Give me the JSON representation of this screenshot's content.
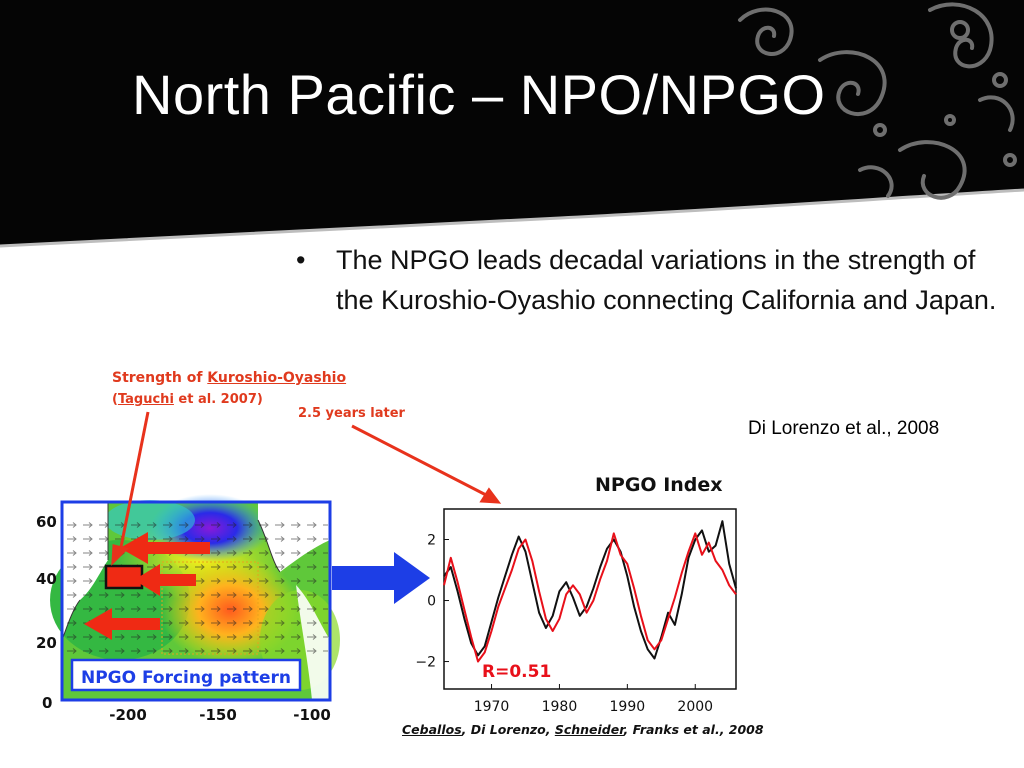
{
  "slide": {
    "title": "North Pacific – NPO/NPGO",
    "bullet": "The NPGO leads decadal variations in the strength of the Kuroshio-Oyashio connecting California and Japan.",
    "citation": "Di Lorenzo et al., 2008"
  },
  "figure": {
    "strength_label_prefix": "Strength of ",
    "strength_label_name": "Kuroshio-Oyashio",
    "taguchi_open": "(",
    "taguchi_name": "Taguchi",
    "taguchi_rest": " et al. 2007)",
    "lag_label": "2.5 years later",
    "forcing_label": "NPGO Forcing pattern",
    "credit_parts": [
      "Ceballos",
      ", Di Lorenzo, ",
      "Schneider",
      ", Franks et al., 2008"
    ],
    "map_y_ticks": [
      "60",
      "40",
      "20",
      "0"
    ],
    "map_x_ticks": [
      "-200",
      "-150",
      "-100"
    ],
    "colors": {
      "accent_red": "#e8321c",
      "arrow_blue": "#1d3ee6",
      "chart_red": "#e8101a",
      "chart_black": "#111111"
    }
  },
  "chart_data": {
    "type": "line",
    "title": "NPGO Index",
    "annotation": "R=0.51",
    "xlim": [
      1963,
      2006
    ],
    "ylim": [
      -2.9,
      3.0
    ],
    "x_ticks": [
      1970,
      1980,
      1990,
      2000
    ],
    "y_ticks": [
      -2,
      0,
      2
    ],
    "x_tick_labels": [
      "1970",
      "1980",
      "1990",
      "2000"
    ],
    "y_tick_labels": [
      "−2",
      "0",
      "2"
    ],
    "grid": false,
    "legend": "none",
    "series": [
      {
        "color": "#111111",
        "x": [
          1963.0,
          1964.0,
          1965.0,
          1966.0,
          1967.0,
          1968.0,
          1969.0,
          1970.0,
          1971.0,
          1972.0,
          1973.0,
          1974.0,
          1975.0,
          1976.0,
          1977.0,
          1978.0,
          1979.0,
          1980.0,
          1981.0,
          1982.0,
          1983.0,
          1984.0,
          1985.0,
          1986.0,
          1987.0,
          1988.0,
          1989.0,
          1990.0,
          1991.0,
          1992.0,
          1993.0,
          1994.0,
          1995.0,
          1996.0,
          1997.0,
          1998.0,
          1999.0,
          2000.0,
          2001.0,
          2002.0,
          2003.0,
          2004.0,
          2005.0,
          2006.0
        ],
        "y": [
          0.8,
          1.1,
          0.3,
          -0.6,
          -1.4,
          -1.8,
          -1.5,
          -0.7,
          0.1,
          0.8,
          1.5,
          2.1,
          1.6,
          0.6,
          -0.4,
          -0.9,
          -0.5,
          0.3,
          0.6,
          0.1,
          -0.5,
          -0.2,
          0.4,
          1.1,
          1.7,
          2.0,
          1.6,
          0.8,
          -0.2,
          -1.0,
          -1.6,
          -1.9,
          -1.2,
          -0.4,
          -0.8,
          0.2,
          1.4,
          2.0,
          2.3,
          1.6,
          1.8,
          2.6,
          1.2,
          0.4
        ]
      },
      {
        "color": "#e8101a",
        "x": [
          1963.0,
          1964.0,
          1965.0,
          1966.0,
          1967.0,
          1968.0,
          1969.0,
          1970.0,
          1971.0,
          1972.0,
          1973.0,
          1974.0,
          1975.0,
          1976.0,
          1977.0,
          1978.0,
          1979.0,
          1980.0,
          1981.0,
          1982.0,
          1983.0,
          1984.0,
          1985.0,
          1986.0,
          1987.0,
          1988.0,
          1989.0,
          1990.0,
          1991.0,
          1992.0,
          1993.0,
          1994.0,
          1995.0,
          1996.0,
          1997.0,
          1998.0,
          1999.0,
          2000.0,
          2001.0,
          2002.0,
          2003.0,
          2004.0,
          2005.0,
          2006.0
        ],
        "y": [
          0.5,
          1.4,
          0.6,
          -0.3,
          -1.2,
          -2.0,
          -1.7,
          -1.0,
          -0.2,
          0.4,
          1.0,
          1.7,
          2.0,
          1.3,
          0.3,
          -0.6,
          -1.0,
          -0.6,
          0.2,
          0.5,
          0.2,
          -0.4,
          0.0,
          0.7,
          1.3,
          2.2,
          1.5,
          1.2,
          0.4,
          -0.5,
          -1.3,
          -1.6,
          -1.3,
          -0.6,
          0.1,
          0.9,
          1.6,
          2.2,
          1.5,
          1.9,
          1.3,
          1.0,
          0.5,
          0.2
        ]
      }
    ]
  }
}
